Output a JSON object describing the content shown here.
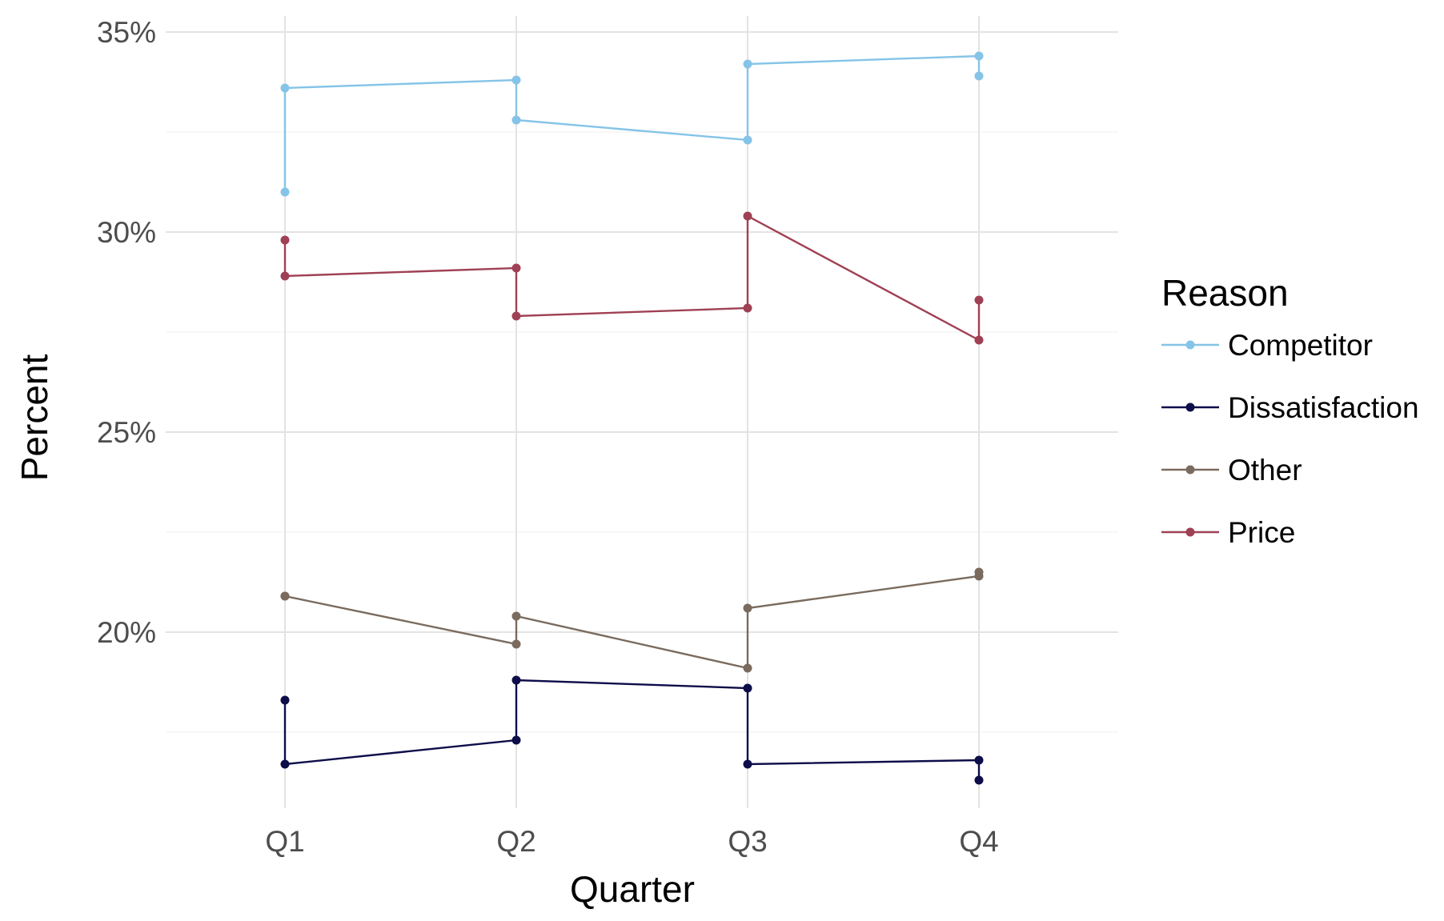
{
  "chart_data": {
    "type": "line",
    "xlabel": "Quarter",
    "ylabel": "Percent",
    "categories": [
      "Q1",
      "Q2",
      "Q3",
      "Q4"
    ],
    "ylim": [
      15.6,
      35.4
    ],
    "y_ticks": [
      20,
      25,
      30,
      35
    ],
    "y_tick_labels": [
      "20%",
      "25%",
      "30%",
      "35%"
    ],
    "grid": true,
    "legend": {
      "title": "Reason",
      "position": "right",
      "entries": [
        "Competitor",
        "Dissatisfaction",
        "Other",
        "Price"
      ]
    },
    "series": [
      {
        "name": "Competitor",
        "color": "#85c4e8",
        "points": [
          {
            "x": "Q1",
            "y": 31.0
          },
          {
            "x": "Q1",
            "y": 33.6
          },
          {
            "x": "Q2",
            "y": 33.8
          },
          {
            "x": "Q2",
            "y": 32.8
          },
          {
            "x": "Q3",
            "y": 32.3
          },
          {
            "x": "Q3",
            "y": 34.2
          },
          {
            "x": "Q4",
            "y": 34.4
          },
          {
            "x": "Q4",
            "y": 33.9
          }
        ]
      },
      {
        "name": "Dissatisfaction",
        "color": "#0d0d4a",
        "points": [
          {
            "x": "Q1",
            "y": 18.3
          },
          {
            "x": "Q1",
            "y": 16.7
          },
          {
            "x": "Q2",
            "y": 17.3
          },
          {
            "x": "Q2",
            "y": 18.8
          },
          {
            "x": "Q3",
            "y": 18.6
          },
          {
            "x": "Q3",
            "y": 16.7
          },
          {
            "x": "Q4",
            "y": 16.8
          },
          {
            "x": "Q4",
            "y": 16.3
          }
        ]
      },
      {
        "name": "Other",
        "color": "#7a6b5e",
        "points": [
          {
            "x": "Q1",
            "y": 20.9
          },
          {
            "x": "Q1",
            "y": 20.9
          },
          {
            "x": "Q2",
            "y": 19.7
          },
          {
            "x": "Q2",
            "y": 20.4
          },
          {
            "x": "Q3",
            "y": 19.1
          },
          {
            "x": "Q3",
            "y": 20.6
          },
          {
            "x": "Q4",
            "y": 21.4
          },
          {
            "x": "Q4",
            "y": 21.5
          }
        ]
      },
      {
        "name": "Price",
        "color": "#a04055",
        "points": [
          {
            "x": "Q1",
            "y": 29.8
          },
          {
            "x": "Q1",
            "y": 28.9
          },
          {
            "x": "Q2",
            "y": 29.1
          },
          {
            "x": "Q2",
            "y": 27.9
          },
          {
            "x": "Q3",
            "y": 28.1
          },
          {
            "x": "Q3",
            "y": 30.4
          },
          {
            "x": "Q4",
            "y": 27.3
          },
          {
            "x": "Q4",
            "y": 28.3
          }
        ]
      }
    ]
  }
}
